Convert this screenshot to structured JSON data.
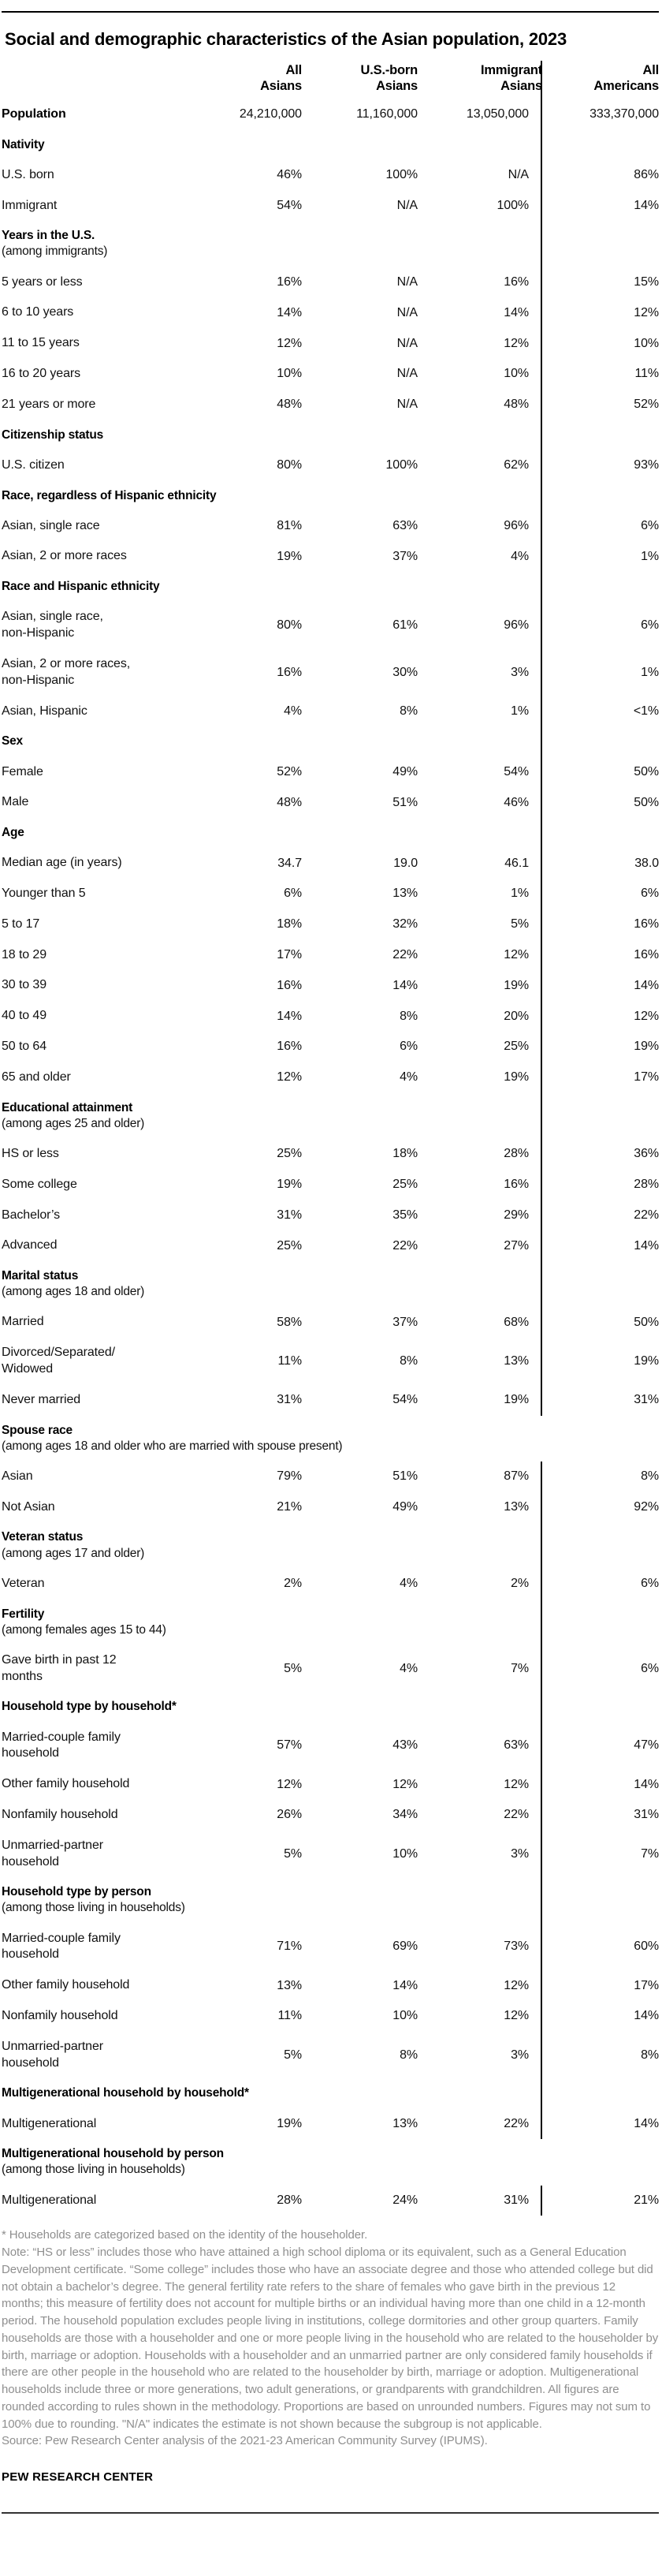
{
  "title": "Social and demographic characteristics of the Asian population, 2023",
  "chart_data": {
    "type": "table",
    "columns": [
      {
        "line1": "All",
        "line2": "Asians"
      },
      {
        "line1": "U.S.-born",
        "line2": "Asians"
      },
      {
        "line1": "Immigrant",
        "line2": "Asians"
      },
      {
        "line1": "All",
        "line2": "Americans"
      }
    ],
    "rows": [
      {
        "type": "data",
        "label": "Population",
        "bold": true,
        "values": [
          "24,210,000",
          "11,160,000",
          "13,050,000",
          "333,370,000"
        ]
      },
      {
        "type": "section",
        "label": "Nativity"
      },
      {
        "type": "data",
        "label": "U.S. born",
        "values": [
          "46%",
          "100%",
          "N/A",
          "86%"
        ]
      },
      {
        "type": "data",
        "label": "Immigrant",
        "values": [
          "54%",
          "N/A",
          "100%",
          "14%"
        ]
      },
      {
        "type": "section",
        "label": "Years in the U.S.",
        "qualifier": "(among immigrants)"
      },
      {
        "type": "data",
        "label": "5 years or less",
        "values": [
          "16%",
          "N/A",
          "16%",
          "15%"
        ]
      },
      {
        "type": "data",
        "label": "6 to 10 years",
        "values": [
          "14%",
          "N/A",
          "14%",
          "12%"
        ]
      },
      {
        "type": "data",
        "label": "11 to 15 years",
        "values": [
          "12%",
          "N/A",
          "12%",
          "10%"
        ]
      },
      {
        "type": "data",
        "label": "16 to 20 years",
        "values": [
          "10%",
          "N/A",
          "10%",
          "11%"
        ]
      },
      {
        "type": "data",
        "label": "21 years or more",
        "values": [
          "48%",
          "N/A",
          "48%",
          "52%"
        ]
      },
      {
        "type": "section",
        "label": "Citizenship status"
      },
      {
        "type": "data",
        "label": "U.S. citizen",
        "values": [
          "80%",
          "100%",
          "62%",
          "93%"
        ]
      },
      {
        "type": "section",
        "label": "Race, regardless of Hispanic ethnicity"
      },
      {
        "type": "data",
        "label": "Asian, single race",
        "values": [
          "81%",
          "63%",
          "96%",
          "6%"
        ]
      },
      {
        "type": "data",
        "label": "Asian, 2 or more races",
        "values": [
          "19%",
          "37%",
          "4%",
          "1%"
        ]
      },
      {
        "type": "section",
        "label": "Race and Hispanic ethnicity"
      },
      {
        "type": "data",
        "label": "Asian, single race,\nnon-Hispanic",
        "values": [
          "80%",
          "61%",
          "96%",
          "6%"
        ]
      },
      {
        "type": "data",
        "label": "Asian, 2 or more races,\nnon-Hispanic",
        "values": [
          "16%",
          "30%",
          "3%",
          "1%"
        ]
      },
      {
        "type": "data",
        "label": "Asian, Hispanic",
        "values": [
          "4%",
          "8%",
          "1%",
          "<1%"
        ]
      },
      {
        "type": "section",
        "label": "Sex"
      },
      {
        "type": "data",
        "label": "Female",
        "values": [
          "52%",
          "49%",
          "54%",
          "50%"
        ]
      },
      {
        "type": "data",
        "label": "Male",
        "values": [
          "48%",
          "51%",
          "46%",
          "50%"
        ]
      },
      {
        "type": "section",
        "label": "Age"
      },
      {
        "type": "data",
        "label": "Median age (in years)",
        "values": [
          "34.7",
          "19.0",
          "46.1",
          "38.0"
        ]
      },
      {
        "type": "data",
        "label": "Younger than 5",
        "values": [
          "6%",
          "13%",
          "1%",
          "6%"
        ]
      },
      {
        "type": "data",
        "label": "5 to 17",
        "values": [
          "18%",
          "32%",
          "5%",
          "16%"
        ]
      },
      {
        "type": "data",
        "label": "18 to 29",
        "values": [
          "17%",
          "22%",
          "12%",
          "16%"
        ]
      },
      {
        "type": "data",
        "label": "30 to 39",
        "values": [
          "16%",
          "14%",
          "19%",
          "14%"
        ]
      },
      {
        "type": "data",
        "label": "40 to 49",
        "values": [
          "14%",
          "8%",
          "20%",
          "12%"
        ]
      },
      {
        "type": "data",
        "label": "50 to 64",
        "values": [
          "16%",
          "6%",
          "25%",
          "19%"
        ]
      },
      {
        "type": "data",
        "label": "65 and older",
        "values": [
          "12%",
          "4%",
          "19%",
          "17%"
        ]
      },
      {
        "type": "section",
        "label": "Educational attainment",
        "qualifier": "(among ages 25 and older)"
      },
      {
        "type": "data",
        "label": "HS or less",
        "values": [
          "25%",
          "18%",
          "28%",
          "36%"
        ]
      },
      {
        "type": "data",
        "label": "Some college",
        "values": [
          "19%",
          "25%",
          "16%",
          "28%"
        ]
      },
      {
        "type": "data",
        "label": "Bachelor’s",
        "values": [
          "31%",
          "35%",
          "29%",
          "22%"
        ]
      },
      {
        "type": "data",
        "label": "Advanced",
        "values": [
          "25%",
          "22%",
          "27%",
          "14%"
        ]
      },
      {
        "type": "section",
        "label": "Marital status",
        "qualifier": "(among ages 18 and older)"
      },
      {
        "type": "data",
        "label": "Married",
        "values": [
          "58%",
          "37%",
          "68%",
          "50%"
        ]
      },
      {
        "type": "data",
        "label": "Divorced/Separated/\nWidowed",
        "values": [
          "11%",
          "8%",
          "13%",
          "19%"
        ]
      },
      {
        "type": "data",
        "label": "Never married",
        "values": [
          "31%",
          "54%",
          "19%",
          "31%"
        ]
      },
      {
        "type": "section",
        "label": "Spouse race",
        "qualifier": "(among ages 18 and older who are married with spouse present)",
        "divider": false
      },
      {
        "type": "data",
        "label": "Asian",
        "values": [
          "79%",
          "51%",
          "87%",
          "8%"
        ]
      },
      {
        "type": "data",
        "label": "Not Asian",
        "values": [
          "21%",
          "49%",
          "13%",
          "92%"
        ]
      },
      {
        "type": "section",
        "label": "Veteran status",
        "qualifier": "(among ages 17 and older)"
      },
      {
        "type": "data",
        "label": "Veteran",
        "values": [
          "2%",
          "4%",
          "2%",
          "6%"
        ]
      },
      {
        "type": "section",
        "label": "Fertility",
        "qualifier": "(among females ages 15 to 44)"
      },
      {
        "type": "data",
        "label": "Gave birth in past 12\nmonths",
        "values": [
          "5%",
          "4%",
          "7%",
          "6%"
        ]
      },
      {
        "type": "section",
        "label": "Household type by household*"
      },
      {
        "type": "data",
        "label": "Married-couple family\nhousehold",
        "values": [
          "57%",
          "43%",
          "63%",
          "47%"
        ]
      },
      {
        "type": "data",
        "label": "Other family household",
        "values": [
          "12%",
          "12%",
          "12%",
          "14%"
        ]
      },
      {
        "type": "data",
        "label": "Nonfamily household",
        "values": [
          "26%",
          "34%",
          "22%",
          "31%"
        ]
      },
      {
        "type": "data",
        "label": "Unmarried-partner\nhousehold",
        "values": [
          "5%",
          "10%",
          "3%",
          "7%"
        ]
      },
      {
        "type": "section",
        "label": "Household type by person",
        "qualifier": "(among those living in households)"
      },
      {
        "type": "data",
        "label": "Married-couple family\nhousehold",
        "values": [
          "71%",
          "69%",
          "73%",
          "60%"
        ]
      },
      {
        "type": "data",
        "label": "Other family household",
        "values": [
          "13%",
          "14%",
          "12%",
          "17%"
        ]
      },
      {
        "type": "data",
        "label": "Nonfamily household",
        "values": [
          "11%",
          "10%",
          "12%",
          "14%"
        ]
      },
      {
        "type": "data",
        "label": "Unmarried-partner\nhousehold",
        "values": [
          "5%",
          "8%",
          "3%",
          "8%"
        ]
      },
      {
        "type": "section",
        "label": "Multigenerational household by household*"
      },
      {
        "type": "data",
        "label": "Multigenerational",
        "values": [
          "19%",
          "13%",
          "22%",
          "14%"
        ]
      },
      {
        "type": "section",
        "label": "Multigenerational household by person",
        "qualifier": "(among those living in households)",
        "divider": false
      },
      {
        "type": "data",
        "label": "Multigenerational",
        "values": [
          "28%",
          "24%",
          "31%",
          "21%"
        ]
      }
    ]
  },
  "footnotes": {
    "asterisk": "* Households are categorized based on the identity of the householder.",
    "note": "Note: “HS or less” includes those who have attained a high school diploma or its equivalent, such as a General Education Development certificate. “Some college” includes those who have an associate degree and those who attended college but did not obtain a bachelor’s degree. The general fertility rate refers to the share of females who gave birth in the previous 12 months; this measure of fertility does not account for multiple births or an individual having more than one child in a 12-month period. The household population excludes people living in institutions, college dormitories and other group quarters. Family households are those with a householder and one or more people living in the household who are related to the householder by birth, marriage or adoption. Households with a householder and an unmarried partner are only considered family households if there are other people in the household who are related to the householder by birth, marriage or adoption. Multigenerational households include three or more generations, two adult generations, or grandparents with grandchildren. All figures are rounded according to rules shown in the methodology. Proportions are based on unrounded numbers. Figures may not sum to 100% due to rounding. \"N/A\" indicates the estimate is not shown because the subgroup is not applicable.",
    "source": "Source: Pew Research Center analysis of the 2021-23 American Community Survey (IPUMS)."
  },
  "brand": "PEW RESEARCH CENTER",
  "colors": {
    "text": "#000000",
    "note_gray": "#8f8f8f",
    "rule": "#000000",
    "divider": "#000000"
  }
}
